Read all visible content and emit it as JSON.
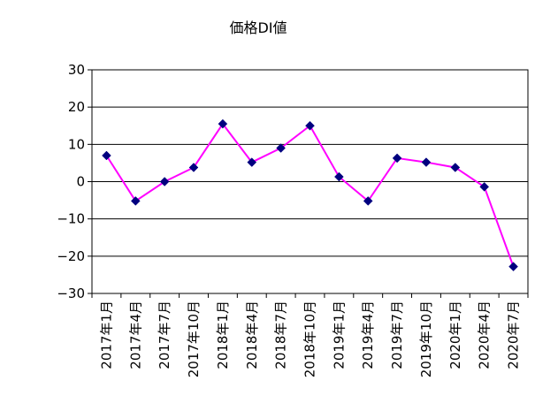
{
  "chart_data": {
    "type": "line",
    "title": "価格DI値",
    "xlabel": "",
    "ylabel": "",
    "ylim": [
      -30,
      30
    ],
    "yticks": [
      30,
      20,
      10,
      0,
      -10,
      -20,
      -30
    ],
    "ytick_labels": [
      "30",
      "20",
      "10",
      "0",
      "−10",
      "−20",
      "−30"
    ],
    "grid": true,
    "legend": "none",
    "categories": [
      "2017年1月",
      "2017年4月",
      "2017年7月",
      "2017年10月",
      "2018年1月",
      "2018年4月",
      "2018年7月",
      "2018年10月",
      "2019年1月",
      "2019年4月",
      "2019年7月",
      "2019年10月",
      "2020年1月",
      "2020年4月",
      "2020年7月"
    ],
    "series": [
      {
        "values": [
          7.0,
          -5.2,
          0.0,
          3.8,
          15.5,
          5.2,
          9.0,
          15.0,
          1.3,
          -5.2,
          6.3,
          5.2,
          3.8,
          -1.4,
          -22.8
        ],
        "line_color": "#ff00ff",
        "marker_color": "#00007f"
      }
    ]
  }
}
